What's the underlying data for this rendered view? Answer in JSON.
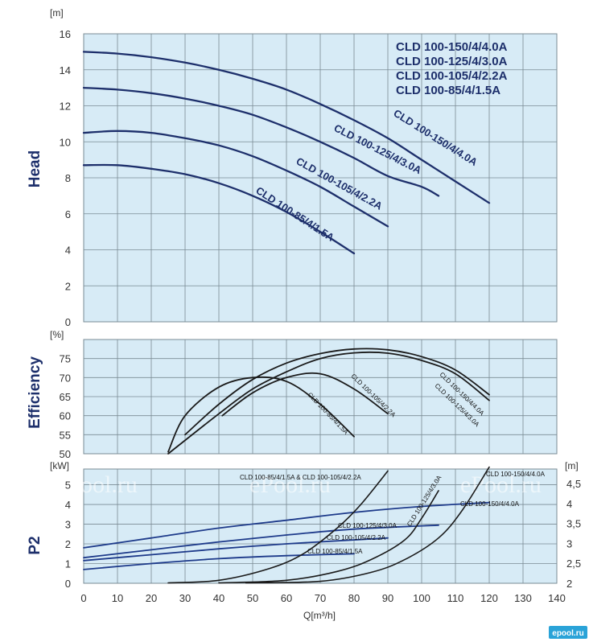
{
  "colors": {
    "panel_bg": "#d7ebf6",
    "grid": "#7a8b94",
    "head_curve": "#1d2f6b",
    "eff_curve": "#1a1a1a",
    "power_curve_blue": "#1d3a8a",
    "power_curve_black": "#1a1a1a"
  },
  "watermark": "ePool.ru",
  "brand": "epool.ru",
  "x_axis": {
    "label": "Q[m³/h]",
    "ticks": [
      "0",
      "10",
      "20",
      "30",
      "40",
      "50",
      "60",
      "70",
      "80",
      "90",
      "100",
      "110",
      "120",
      "130",
      "140"
    ]
  },
  "chart_data": [
    {
      "type": "line",
      "panel": "head",
      "ylabel": "Head",
      "unit": "[m]",
      "xlim": [
        0,
        140
      ],
      "ylim": [
        0,
        16
      ],
      "yticks": [
        "0",
        "2",
        "4",
        "6",
        "8",
        "10",
        "12",
        "14",
        "16"
      ],
      "grid": true,
      "legend_position": "top-right",
      "legend": [
        "CLD 100-150/4/4.0A",
        "CLD 100-125/4/3.0A",
        "CLD 100-105/4/2.2A",
        "CLD 100-85/4/1.5A"
      ],
      "series": [
        {
          "name": "CLD 100-150/4/4.0A",
          "x": [
            0,
            10,
            20,
            30,
            40,
            50,
            60,
            70,
            80,
            90,
            100,
            110,
            120
          ],
          "y": [
            15.0,
            14.9,
            14.7,
            14.4,
            14.0,
            13.5,
            12.9,
            12.1,
            11.2,
            10.2,
            9.0,
            7.8,
            6.6
          ]
        },
        {
          "name": "CLD 100-125/4/3.0A",
          "x": [
            0,
            10,
            20,
            30,
            40,
            50,
            60,
            70,
            80,
            90,
            100,
            105
          ],
          "y": [
            13.0,
            12.9,
            12.7,
            12.4,
            12.0,
            11.5,
            10.8,
            10.0,
            9.1,
            8.1,
            7.5,
            7.0
          ]
        },
        {
          "name": "CLD 100-105/4/2.2A",
          "x": [
            0,
            10,
            20,
            30,
            40,
            50,
            60,
            70,
            80,
            90
          ],
          "y": [
            10.5,
            10.6,
            10.5,
            10.2,
            9.8,
            9.2,
            8.4,
            7.5,
            6.4,
            5.3
          ]
        },
        {
          "name": "CLD 100-85/4/1.5A",
          "x": [
            0,
            10,
            20,
            30,
            40,
            50,
            60,
            70,
            80
          ],
          "y": [
            8.7,
            8.7,
            8.5,
            8.2,
            7.7,
            7.0,
            6.1,
            5.0,
            3.8
          ]
        }
      ]
    },
    {
      "type": "line",
      "panel": "efficiency",
      "ylabel": "Efficiency",
      "unit": "[%]",
      "xlim": [
        0,
        140
      ],
      "ylim": [
        50,
        80
      ],
      "yticks": [
        "50",
        "55",
        "60",
        "65",
        "70",
        "75"
      ],
      "grid": true,
      "series": [
        {
          "name": "CLD 100-150/4/4.0A",
          "x": [
            30,
            40,
            50,
            60,
            70,
            80,
            90,
            100,
            110,
            120
          ],
          "y": [
            55,
            63,
            69.5,
            73.8,
            76.3,
            77.5,
            77.3,
            75.5,
            72,
            65.5
          ]
        },
        {
          "name": "CLD 100-125/4/3.0A",
          "x": [
            25,
            40,
            50,
            60,
            70,
            80,
            90,
            100,
            110,
            120
          ],
          "y": [
            50,
            60.5,
            67,
            71.5,
            75,
            76.5,
            76.4,
            74.5,
            71,
            64
          ]
        },
        {
          "name": "CLD 100-105/4/2.2A",
          "x": [
            41,
            50,
            60,
            70,
            80,
            90
          ],
          "y": [
            60,
            66,
            70,
            71,
            67,
            60.5
          ]
        },
        {
          "name": "CLD 100-85/4/1.5A",
          "x": [
            25,
            30,
            40,
            50,
            60,
            70,
            80
          ],
          "y": [
            50.5,
            60,
            67.5,
            70,
            69,
            63,
            54.5
          ]
        }
      ],
      "annotations": [
        "CLD 100-150/4/4.0A",
        "CLD 100-125/4/3.0A",
        "CLD 100-105/4/2.2A",
        "CLD 100-85/4/1.5A"
      ]
    },
    {
      "type": "line",
      "panel": "power",
      "ylabel": "P2",
      "unit": "[kW]",
      "right_unit": "[m]",
      "xlim": [
        0,
        140
      ],
      "ylim": [
        0,
        5.8
      ],
      "yticks": [
        "0",
        "1",
        "2",
        "3",
        "4",
        "5"
      ],
      "right_axis_ticks": [
        "2",
        "2,5",
        "3",
        "3,5",
        "4",
        "4,5"
      ],
      "grid": true,
      "series": [
        {
          "name": "CLD 100-150/4/4.0A",
          "x": [
            0,
            20,
            40,
            60,
            80,
            100,
            120
          ],
          "y": [
            1.8,
            2.3,
            2.8,
            3.2,
            3.6,
            3.9,
            4.1
          ]
        },
        {
          "name": "CLD 100-125/4/3.0A",
          "x": [
            0,
            20,
            40,
            60,
            80,
            105
          ],
          "y": [
            1.3,
            1.7,
            2.1,
            2.45,
            2.75,
            2.95
          ]
        },
        {
          "name": "CLD 100-105/4/2.2A",
          "x": [
            0,
            20,
            40,
            60,
            90
          ],
          "y": [
            1.15,
            1.45,
            1.75,
            2.0,
            2.3
          ]
        },
        {
          "name": "CLD 100-85/4/1.5A",
          "x": [
            0,
            20,
            40,
            60,
            80
          ],
          "y": [
            0.7,
            1.0,
            1.25,
            1.4,
            1.5
          ]
        }
      ],
      "npsh_curves": [
        {
          "name": "CLD 100-85/4/1.5A & CLD 100-105/4/2.2A",
          "x": [
            25,
            40,
            55,
            65,
            75,
            82,
            90
          ],
          "y": [
            0.02,
            0.15,
            0.75,
            1.5,
            2.8,
            4.0,
            5.7
          ]
        },
        {
          "name": "CLD 100-125/4/3.0A",
          "x": [
            40,
            60,
            75,
            85,
            95,
            100,
            105
          ],
          "y": [
            0.02,
            0.15,
            0.6,
            1.2,
            2.2,
            3.3,
            4.7
          ]
        },
        {
          "name": "CLD 100-150/4/4.0A",
          "x": [
            48,
            70,
            85,
            95,
            105,
            112,
            120
          ],
          "y": [
            0.02,
            0.1,
            0.55,
            1.2,
            2.3,
            3.7,
            5.9
          ]
        }
      ],
      "annotations": [
        "CLD 100-150/4/4.0A",
        "CLD 100-150/4/4.0A",
        "CLD 100-125/4/3.0A",
        "CLD 100-105/4/2.2A",
        "CLD 100-85/4/1.5A",
        "CLD 100-85/4/1.5A & CLD 100-105/4/2.2A",
        "CLD 100-125/4/3.0A"
      ]
    }
  ]
}
